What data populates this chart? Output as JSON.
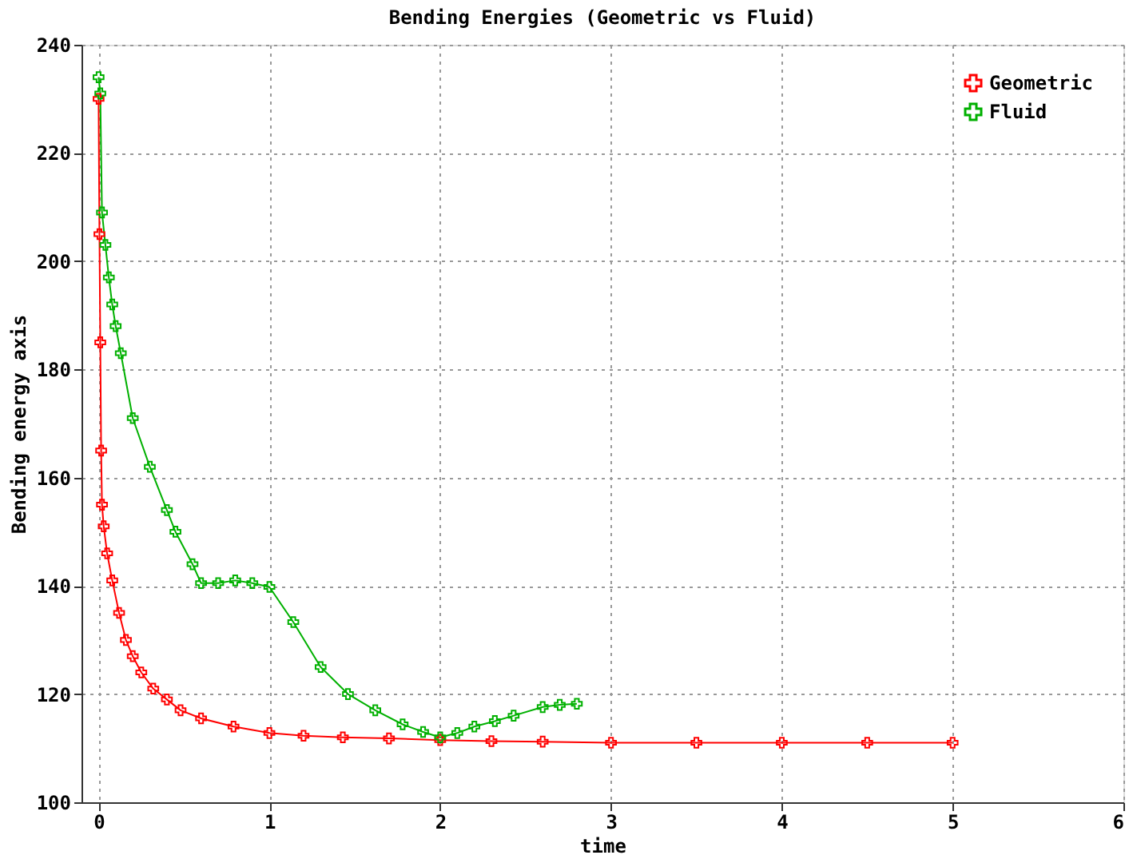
{
  "chart_data": {
    "type": "line",
    "title": "Bending Energies (Geometric vs Fluid)",
    "xlabel": "time",
    "ylabel": "Bending energy axis",
    "xlim": [
      -0.1,
      6
    ],
    "ylim": [
      100,
      240
    ],
    "xticks": [
      0,
      1,
      2,
      3,
      4,
      5,
      6
    ],
    "yticks": [
      100,
      120,
      140,
      160,
      180,
      200,
      220,
      240
    ],
    "grid": true,
    "legend": "top right",
    "marker": "cross",
    "line_style": "solid",
    "series": [
      {
        "name": "Geometric",
        "color": "#ff0000",
        "x": [
          0,
          0.005,
          0.01,
          0.015,
          0.02,
          0.03,
          0.05,
          0.08,
          0.12,
          0.16,
          0.2,
          0.25,
          0.32,
          0.4,
          0.48,
          0.6,
          0.79,
          1.0,
          1.2,
          1.43,
          1.7,
          2.0,
          2.3,
          2.6,
          3.0,
          3.5,
          4.0,
          4.5,
          5.0
        ],
        "values": [
          230,
          205,
          185,
          165,
          155,
          151,
          146,
          141,
          135,
          130,
          127,
          124,
          121,
          119,
          117,
          115.5,
          114,
          112.8,
          112.3,
          112,
          111.8,
          111.5,
          111.3,
          111.2,
          111,
          111,
          111,
          111,
          111
        ]
      },
      {
        "name": "Fluid",
        "color": "#00b000",
        "x": [
          0,
          0.01,
          0.02,
          0.04,
          0.06,
          0.08,
          0.1,
          0.13,
          0.2,
          0.3,
          0.4,
          0.45,
          0.55,
          0.6,
          0.7,
          0.8,
          0.9,
          1.0,
          1.14,
          1.3,
          1.46,
          1.62,
          1.78,
          1.9,
          2.0,
          2.1,
          2.2,
          2.32,
          2.43,
          2.6,
          2.7,
          2.8
        ],
        "values": [
          234,
          231,
          209,
          203,
          197,
          192,
          188,
          183,
          171,
          162,
          154,
          150,
          144,
          140.5,
          140.5,
          141,
          140.5,
          139.8,
          133.3,
          125,
          120,
          117,
          114.4,
          113,
          112,
          112.8,
          114,
          115,
          116,
          117.6,
          118,
          118.2
        ]
      }
    ]
  }
}
